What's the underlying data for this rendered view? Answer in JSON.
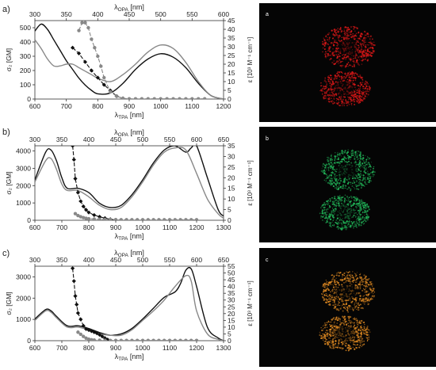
{
  "panels": [
    {
      "letter": "a)",
      "chart": {
        "type": "line",
        "title": "",
        "x_bottom": {
          "label_main": "λ",
          "label_sub": "TPA",
          "label_unit": " [nm]",
          "range": [
            600,
            1200
          ],
          "ticks": [
            600,
            700,
            800,
            900,
            1000,
            1100,
            1200
          ]
        },
        "x_top": {
          "label_main": "λ",
          "label_sub": "OPA",
          "label_unit": " [nm]",
          "range": [
            300,
            600
          ],
          "ticks": [
            300,
            350,
            400,
            450,
            500,
            550,
            600
          ]
        },
        "y_left": {
          "label": "σ₂ [GM]",
          "range": [
            0,
            550
          ],
          "ticks": [
            0,
            100,
            200,
            300,
            400,
            500
          ]
        },
        "y_right": {
          "label": "ε [10³ M⁻¹ cm⁻¹]",
          "range": [
            0,
            45
          ],
          "ticks": [
            0,
            5,
            10,
            15,
            20,
            25,
            30,
            35,
            40,
            45
          ]
        },
        "series": [
          {
            "style": "black-solid",
            "axis": "right",
            "x": [
              300,
              310,
              320,
              330,
              340,
              350,
              360,
              370,
              380,
              390,
              400,
              420,
              440,
              460,
              480,
              500,
              520,
              540,
              560,
              580,
              600
            ],
            "y": [
              39,
              43,
              40,
              34,
              28,
              22,
              17,
              12,
              8,
              5,
              3,
              3.5,
              9,
              17,
              23,
              26,
              24,
              18,
              9,
              2,
              0
            ]
          },
          {
            "style": "gray-solid",
            "axis": "right",
            "x": [
              300,
              310,
              320,
              330,
              340,
              350,
              360,
              370,
              380,
              390,
              400,
              420,
              440,
              460,
              480,
              500,
              520,
              540,
              560,
              580,
              600
            ],
            "y": [
              34,
              29,
              23,
              19,
              19,
              20,
              20,
              18,
              16,
              14,
              12,
              10,
              14,
              20,
              27,
              31,
              29,
              21,
              10,
              2,
              0
            ]
          },
          {
            "style": "black-diamond-dashed",
            "axis": "left",
            "x": [
              720,
              740,
              760,
              780,
              800,
              820,
              840,
              860,
              880
            ],
            "y": [
              360,
              320,
              260,
              200,
              150,
              100,
              60,
              20,
              5
            ]
          },
          {
            "style": "gray-circle-dashed",
            "axis": "left",
            "x": [
              740,
              750,
              760,
              770,
              780,
              790,
              800,
              810,
              820,
              840,
              860,
              880,
              900,
              920,
              940,
              960,
              980,
              1000,
              1020,
              1040,
              1060,
              1080,
              1100,
              1120,
              1140
            ],
            "y": [
              480,
              535,
              535,
              500,
              420,
              360,
              300,
              230,
              150,
              50,
              20,
              5,
              2,
              2,
              2,
              2,
              2,
              2,
              2,
              2,
              2,
              2,
              2,
              2,
              2
            ]
          }
        ]
      },
      "image_label": "a",
      "image_color": "#e01818"
    },
    {
      "letter": "b)",
      "chart": {
        "type": "line",
        "title": "",
        "x_bottom": {
          "label_main": "λ",
          "label_sub": "TPA",
          "label_unit": " [nm]",
          "range": [
            600,
            1300
          ],
          "ticks": [
            600,
            700,
            800,
            900,
            1000,
            1100,
            1200,
            1300
          ]
        },
        "x_top": {
          "label_main": "λ",
          "label_sub": "OPA",
          "label_unit": " [nm]",
          "range": [
            300,
            650
          ],
          "ticks": [
            300,
            350,
            400,
            450,
            500,
            550,
            600,
            650
          ]
        },
        "y_left": {
          "label": "σ₂ [GM]",
          "range": [
            0,
            4300
          ],
          "ticks": [
            0,
            1000,
            2000,
            3000,
            4000
          ]
        },
        "y_right": {
          "label": "ε [10³ M⁻¹ cm⁻¹]",
          "range": [
            0,
            35
          ],
          "ticks": [
            0,
            5,
            10,
            15,
            20,
            25,
            30,
            35
          ]
        },
        "series": [
          {
            "style": "black-solid",
            "axis": "right",
            "x": [
              300,
              320,
              330,
              340,
              350,
              360,
              380,
              400,
              420,
              440,
              460,
              480,
              500,
              520,
              540,
              560,
              580,
              590,
              600,
              620,
              640,
              650
            ],
            "y": [
              19,
              32,
              33,
              28,
              20,
              15,
              15,
              13,
              8,
              6,
              7,
              12,
              19,
              27,
              33,
              35,
              32,
              34,
              35,
              20,
              5,
              2
            ]
          },
          {
            "style": "gray-solid",
            "axis": "right",
            "x": [
              300,
              320,
              330,
              340,
              350,
              360,
              380,
              400,
              420,
              440,
              460,
              480,
              500,
              520,
              540,
              560,
              580,
              600,
              620,
              640,
              650
            ],
            "y": [
              18,
              28,
              29,
              24,
              17,
              14,
              14,
              11,
              7,
              5,
              6,
              11,
              18,
              26,
              32,
              34,
              33,
              22,
              10,
              3,
              1
            ]
          },
          {
            "style": "black-diamond-dashed",
            "axis": "left",
            "x": [
              740,
              745,
              750,
              760,
              770,
              780,
              790,
              800,
              820,
              840,
              860,
              880,
              900
            ],
            "y": [
              4300,
              3500,
              2400,
              1600,
              1100,
              800,
              600,
              450,
              300,
              200,
              120,
              60,
              20
            ]
          },
          {
            "style": "gray-circle-dashed",
            "axis": "left",
            "x": [
              750,
              760,
              770,
              780,
              790,
              800,
              820,
              840,
              860,
              880,
              900,
              920,
              940,
              960,
              980,
              1000,
              1020,
              1040,
              1060,
              1080,
              1100,
              1120,
              1140,
              1160,
              1180,
              1200
            ],
            "y": [
              380,
              270,
              200,
              150,
              110,
              90,
              70,
              60,
              50,
              40,
              35,
              30,
              30,
              30,
              30,
              30,
              30,
              30,
              30,
              30,
              30,
              30,
              30,
              30,
              30,
              30
            ]
          }
        ]
      },
      "image_label": "b",
      "image_color": "#22b85a"
    },
    {
      "letter": "c)",
      "chart": {
        "type": "line",
        "title": "",
        "x_bottom": {
          "label_main": "λ",
          "label_sub": "TPA",
          "label_unit": " [nm]",
          "range": [
            600,
            1300
          ],
          "ticks": [
            600,
            700,
            800,
            900,
            1000,
            1100,
            1200,
            1300
          ]
        },
        "x_top": {
          "label_main": "λ",
          "label_sub": "OPA",
          "label_unit": " [nm]",
          "range": [
            300,
            650
          ],
          "ticks": [
            300,
            350,
            400,
            450,
            500,
            550,
            600,
            650
          ]
        },
        "y_left": {
          "label": "σ₂ [GM]",
          "range": [
            0,
            3500
          ],
          "ticks": [
            0,
            1000,
            2000,
            3000
          ]
        },
        "y_right": {
          "label": "ε [10³ M⁻¹ cm⁻¹]",
          "range": [
            0,
            55
          ],
          "ticks": [
            0,
            5,
            10,
            15,
            20,
            25,
            30,
            35,
            40,
            45,
            50,
            55
          ]
        },
        "series": [
          {
            "style": "black-solid",
            "axis": "right",
            "x": [
              300,
              320,
              330,
              340,
              360,
              380,
              400,
              420,
              440,
              460,
              480,
              500,
              520,
              540,
              560,
              570,
              580,
              590,
              600,
              620,
              640,
              650
            ],
            "y": [
              16,
              23,
              22,
              18,
              11,
              11,
              9,
              6,
              4,
              5,
              9,
              16,
              24,
              32,
              36,
              42,
              52,
              53,
              40,
              10,
              2,
              0
            ]
          },
          {
            "style": "gray-solid",
            "axis": "right",
            "x": [
              300,
              320,
              330,
              340,
              360,
              380,
              400,
              420,
              440,
              460,
              480,
              500,
              520,
              540,
              560,
              580,
              590,
              600,
              620,
              640,
              650
            ],
            "y": [
              15,
              22,
              21,
              17,
              10,
              10,
              8,
              5,
              4,
              4,
              8,
              15,
              22,
              30,
              40,
              48,
              44,
              22,
              5,
              1,
              0
            ]
          },
          {
            "style": "black-diamond-dashed",
            "axis": "left",
            "x": [
              740,
              745,
              750,
              755,
              760,
              770,
              780,
              790,
              800,
              810,
              820,
              830,
              840,
              850,
              860,
              870
            ],
            "y": [
              3400,
              2800,
              2100,
              1700,
              1300,
              1000,
              700,
              550,
              500,
              450,
              400,
              350,
              280,
              200,
              120,
              50
            ]
          },
          {
            "style": "gray-circle-dashed",
            "axis": "left",
            "x": [
              760,
              770,
              780,
              790,
              800,
              810,
              820,
              840,
              860,
              880,
              900,
              920,
              940,
              960,
              980,
              1000,
              1020,
              1040,
              1060,
              1080,
              1100,
              1120,
              1140,
              1160,
              1180,
              1200
            ],
            "y": [
              400,
              300,
              200,
              120,
              70,
              45,
              30,
              20,
              15,
              12,
              10,
              10,
              10,
              10,
              10,
              10,
              10,
              10,
              10,
              10,
              10,
              10,
              10,
              10,
              10,
              10
            ]
          }
        ]
      },
      "image_label": "c",
      "image_color": "#e08a22"
    }
  ]
}
